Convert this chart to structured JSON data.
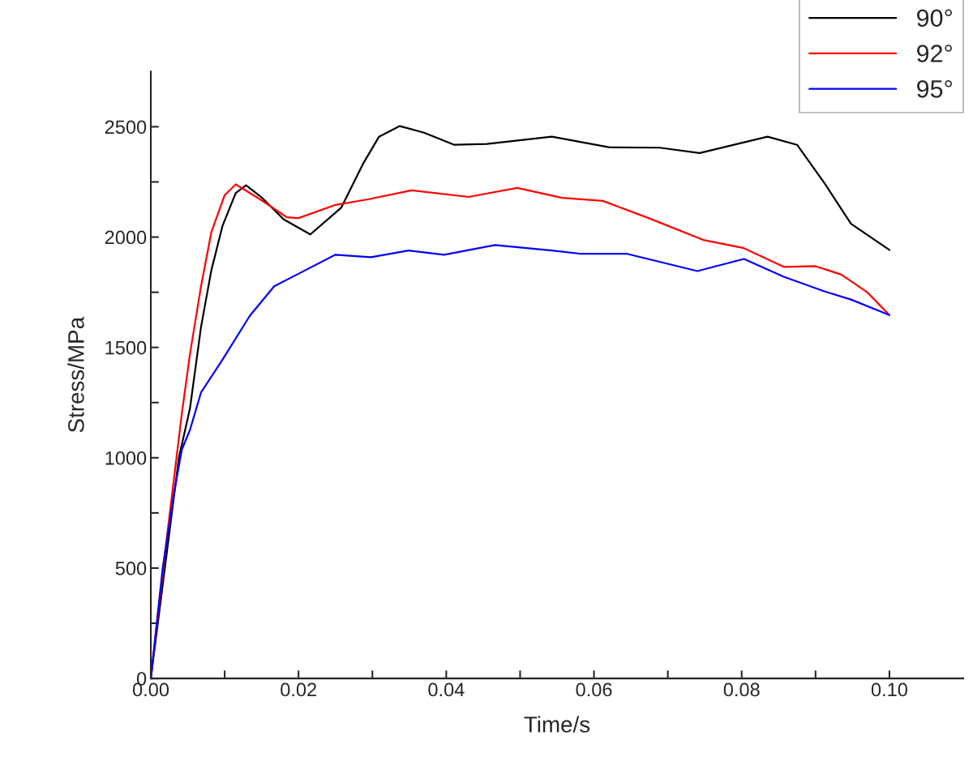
{
  "chart_data": {
    "type": "line",
    "xlabel": "Time/s",
    "ylabel": "Stress/MPa",
    "xlim": [
      0,
      0.11
    ],
    "ylim": [
      0,
      2750
    ],
    "xticks": [
      {
        "value": 0,
        "label": "0.00"
      },
      {
        "value": 0.01,
        "label": null
      },
      {
        "value": 0.02,
        "label": "0.02"
      },
      {
        "value": 0.03,
        "label": null
      },
      {
        "value": 0.04,
        "label": "0.04"
      },
      {
        "value": 0.05,
        "label": null
      },
      {
        "value": 0.06,
        "label": "0.06"
      },
      {
        "value": 0.07,
        "label": null
      },
      {
        "value": 0.08,
        "label": "0.08"
      },
      {
        "value": 0.09,
        "label": null
      },
      {
        "value": 0.1,
        "label": "0.10"
      }
    ],
    "yticks": [
      0,
      {
        "value": 250,
        "label": null
      },
      500,
      {
        "value": 750,
        "label": null
      },
      1000,
      {
        "value": 1250,
        "label": null
      },
      1500,
      {
        "value": 1750,
        "label": null
      },
      2000,
      {
        "value": 2250,
        "label": null
      },
      2500
    ],
    "grid": false,
    "legend": "top right",
    "marker": "none",
    "line_style": "solid",
    "series": [
      {
        "name": "90°",
        "color": "#000000",
        "x": [
          0,
          0.0038,
          0.0053,
          0.0068,
          0.0082,
          0.0097,
          0.0115,
          0.0129,
          0.015,
          0.018,
          0.0216,
          0.0258,
          0.0287,
          0.0309,
          0.0337,
          0.037,
          0.0411,
          0.0455,
          0.0543,
          0.062,
          0.0689,
          0.0743,
          0.0835,
          0.0875,
          0.0912,
          0.0948,
          0.1
        ],
        "values": [
          0,
          1000,
          1223,
          1593,
          1850,
          2050,
          2200,
          2235,
          2180,
          2080,
          2012,
          2134,
          2330,
          2455,
          2503,
          2473,
          2418,
          2422,
          2455,
          2407,
          2405,
          2381,
          2455,
          2418,
          2245,
          2060,
          1942
        ]
      },
      {
        "name": "92°",
        "color": "#ff0000",
        "x": [
          0,
          0.0018,
          0.0042,
          0.0053,
          0.0068,
          0.0082,
          0.01,
          0.0115,
          0.0148,
          0.0184,
          0.02,
          0.025,
          0.0294,
          0.0353,
          0.043,
          0.0496,
          0.0557,
          0.0612,
          0.0674,
          0.0748,
          0.0803,
          0.0857,
          0.09,
          0.0935,
          0.097,
          0.1
        ],
        "values": [
          0,
          535,
          1200,
          1470,
          1777,
          2023,
          2190,
          2239,
          2171,
          2090,
          2086,
          2146,
          2171,
          2212,
          2182,
          2223,
          2178,
          2164,
          2086,
          1987,
          1950,
          1865,
          1868,
          1830,
          1750,
          1647
        ]
      },
      {
        "name": "95°",
        "color": "#0000ff",
        "x": [
          0,
          0.0016,
          0.0031,
          0.0042,
          0.0053,
          0.0068,
          0.0097,
          0.0134,
          0.0167,
          0.0203,
          0.025,
          0.0298,
          0.0349,
          0.0397,
          0.0466,
          0.0543,
          0.0583,
          0.0645,
          0.074,
          0.0803,
          0.0857,
          0.0912,
          0.0948,
          0.1
        ],
        "values": [
          0,
          498,
          830,
          1037,
          1126,
          1296,
          1444,
          1643,
          1777,
          1839,
          1920,
          1909,
          1939,
          1920,
          1964,
          1939,
          1924,
          1924,
          1846,
          1901,
          1820,
          1754,
          1717,
          1647
        ]
      }
    ]
  }
}
